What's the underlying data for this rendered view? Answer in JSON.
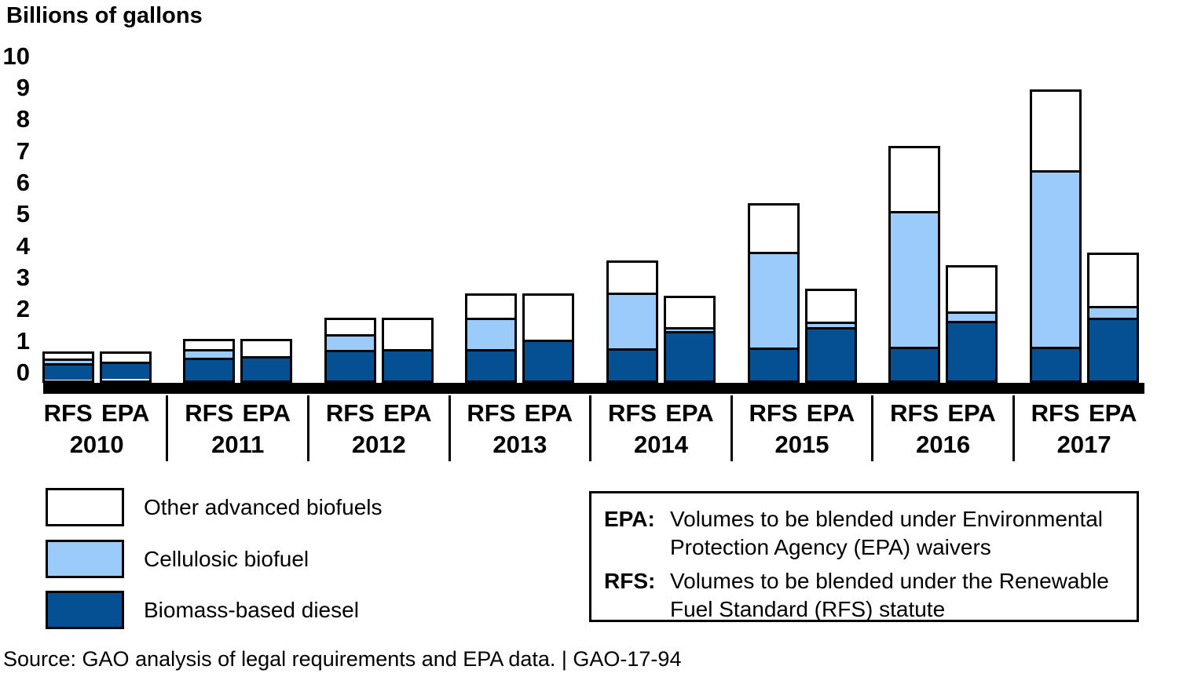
{
  "title": "Billions of gallons",
  "chart_data": {
    "type": "bar",
    "stacked": true,
    "title": "Billions of gallons",
    "ylabel": "Billions of gallons",
    "xlabel": "",
    "ylim": [
      0,
      10
    ],
    "y_ticks": [
      0,
      1,
      2,
      3,
      4,
      5,
      6,
      7,
      8,
      9,
      10
    ],
    "grid": false,
    "legend_position": "bottom-left",
    "bar_labels": [
      "RFS",
      "EPA"
    ],
    "segments": [
      {
        "key": "diesel",
        "label": "Biomass-based diesel",
        "color": "#045093"
      },
      {
        "key": "cellulosic",
        "label": "Cellulosic biofuel",
        "color": "#9BCBFA"
      },
      {
        "key": "other",
        "label": "Other advanced biofuels",
        "color": "#FFFFFF"
      }
    ],
    "groups": [
      {
        "year": "2010",
        "bars": [
          {
            "label": "RFS",
            "diesel": 0.65,
            "cellulosic": 0.1,
            "other": 0.2,
            "total": 0.95
          },
          {
            "label": "EPA",
            "diesel": 0.65,
            "cellulosic": 0.0,
            "other": 0.3,
            "total": 0.95
          }
        ]
      },
      {
        "year": "2011",
        "bars": [
          {
            "label": "RFS",
            "diesel": 0.8,
            "cellulosic": 0.25,
            "other": 0.3,
            "total": 1.35
          },
          {
            "label": "EPA",
            "diesel": 0.8,
            "cellulosic": 0.0,
            "other": 0.55,
            "total": 1.35
          }
        ]
      },
      {
        "year": "2012",
        "bars": [
          {
            "label": "RFS",
            "diesel": 1.0,
            "cellulosic": 0.5,
            "other": 0.5,
            "total": 2.0
          },
          {
            "label": "EPA",
            "diesel": 1.0,
            "cellulosic": 0.0,
            "other": 1.0,
            "total": 2.0
          }
        ]
      },
      {
        "year": "2013",
        "bars": [
          {
            "label": "RFS",
            "diesel": 1.0,
            "cellulosic": 1.0,
            "other": 0.75,
            "total": 2.75
          },
          {
            "label": "EPA",
            "diesel": 1.28,
            "cellulosic": 0.0,
            "other": 1.47,
            "total": 2.75
          }
        ]
      },
      {
        "year": "2014",
        "bars": [
          {
            "label": "RFS",
            "diesel": 1.0,
            "cellulosic": 1.75,
            "other": 1.0,
            "total": 3.75
          },
          {
            "label": "EPA",
            "diesel": 1.63,
            "cellulosic": 0.03,
            "other": 1.01,
            "total": 2.67
          }
        ]
      },
      {
        "year": "2015",
        "bars": [
          {
            "label": "RFS",
            "diesel": 1.0,
            "cellulosic": 3.0,
            "other": 1.5,
            "total": 5.5
          },
          {
            "label": "EPA",
            "diesel": 1.73,
            "cellulosic": 0.12,
            "other": 1.03,
            "total": 2.88
          }
        ]
      },
      {
        "year": "2016",
        "bars": [
          {
            "label": "RFS",
            "diesel": 1.0,
            "cellulosic": 4.25,
            "other": 2.0,
            "total": 7.25
          },
          {
            "label": "EPA",
            "diesel": 1.9,
            "cellulosic": 0.23,
            "other": 1.48,
            "total": 3.61
          }
        ]
      },
      {
        "year": "2017",
        "bars": [
          {
            "label": "RFS",
            "diesel": 1.0,
            "cellulosic": 5.5,
            "other": 2.5,
            "total": 9.0
          },
          {
            "label": "EPA",
            "diesel": 2.0,
            "cellulosic": 0.31,
            "other": 1.69,
            "total": 4.0
          }
        ]
      }
    ]
  },
  "legend": {
    "items": [
      {
        "label": "Other advanced biofuels",
        "color": "#FFFFFF"
      },
      {
        "label": "Cellulosic biofuel",
        "color": "#9BCBFA"
      },
      {
        "label": "Biomass-based diesel",
        "color": "#045093"
      }
    ]
  },
  "definitions": {
    "items": [
      {
        "term": "EPA:",
        "text": "Volumes to be blended under Environmental Protection Agency (EPA) waivers"
      },
      {
        "term": "RFS:",
        "text": "Volumes to be blended under the Renewable Fuel Standard (RFS) statute"
      }
    ]
  },
  "footer": {
    "source": "Source: GAO analysis of legal requirements and EPA data.  |  GAO-17-94"
  },
  "colors": {
    "axis": "#000000",
    "bar_border": "#000000",
    "diesel": "#045093",
    "cellulosic": "#9BCBFA",
    "other": "#FFFFFF"
  }
}
